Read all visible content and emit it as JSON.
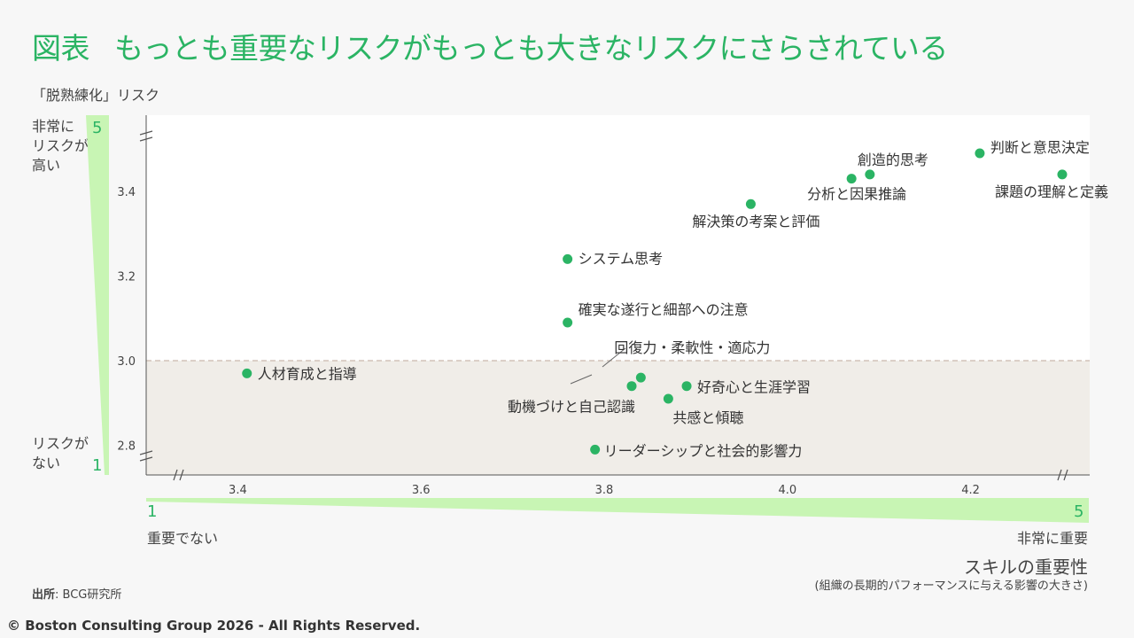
{
  "header": {
    "title_lead": "図表",
    "title": "もっとも重要なリスクがもっとも大きなリスクにさらされている"
  },
  "y_axis": {
    "sub": "「脱熟練化」リスク",
    "high_label": [
      "非常に",
      "リスクが",
      "高い"
    ],
    "low_label": [
      "リスクが",
      "ない"
    ],
    "scale_max": "5",
    "scale_min": "1"
  },
  "x_axis": {
    "scale_min": "1",
    "scale_max": "5",
    "low_label": "重要でない",
    "high_label": "非常に重要",
    "title": "スキルの重要性",
    "subtitle": "(組織の長期的パフォーマンスに与える影響の大きさ)"
  },
  "footer": {
    "source_label": "出所",
    "source_text": ": BCG研究所",
    "copyright": "© Boston Consulting Group 2026 - All Rights Reserved."
  },
  "colors": {
    "accent": "#2bb464",
    "wedge": "#c8f5b4",
    "low_band": "#f0ede8",
    "plot_bg": "#ffffff"
  },
  "chart_data": {
    "type": "scatter",
    "xlim": [
      3.3,
      4.33
    ],
    "ylim": [
      2.73,
      3.58
    ],
    "x_ticks": [
      "3.4",
      "3.6",
      "3.8",
      "4.0",
      "4.2"
    ],
    "x_tick_values": [
      3.4,
      3.6,
      3.8,
      4.0,
      4.2
    ],
    "y_ticks": [
      "3.4",
      "3.2",
      "3.0",
      "2.8"
    ],
    "y_tick_values": [
      3.4,
      3.2,
      3.0,
      2.8
    ],
    "threshold_y": 3.0,
    "points": [
      {
        "label": "判断と意思決定",
        "x": 4.21,
        "y": 3.49
      },
      {
        "label": "課題の理解と定義",
        "x": 4.3,
        "y": 3.44
      },
      {
        "label": "創造的思考",
        "x": 4.09,
        "y": 3.44
      },
      {
        "label": "分析と因果推論",
        "x": 4.07,
        "y": 3.43
      },
      {
        "label": "解決策の考案と評価",
        "x": 3.96,
        "y": 3.37
      },
      {
        "label": "システム思考",
        "x": 3.76,
        "y": 3.24
      },
      {
        "label": "確実な遂行と細部への注意",
        "x": 3.76,
        "y": 3.09
      },
      {
        "label": "回復力・柔軟性・適応力",
        "x": 3.84,
        "y": 2.96
      },
      {
        "label": "人材育成と指導",
        "x": 3.41,
        "y": 2.97
      },
      {
        "label": "動機づけと自己認識",
        "x": 3.83,
        "y": 2.94
      },
      {
        "label": "好奇心と生涯学習",
        "x": 3.89,
        "y": 2.94
      },
      {
        "label": "共感と傾聴",
        "x": 3.87,
        "y": 2.91
      },
      {
        "label": "リーダーシップと社会的影響力",
        "x": 3.79,
        "y": 2.79
      }
    ]
  }
}
